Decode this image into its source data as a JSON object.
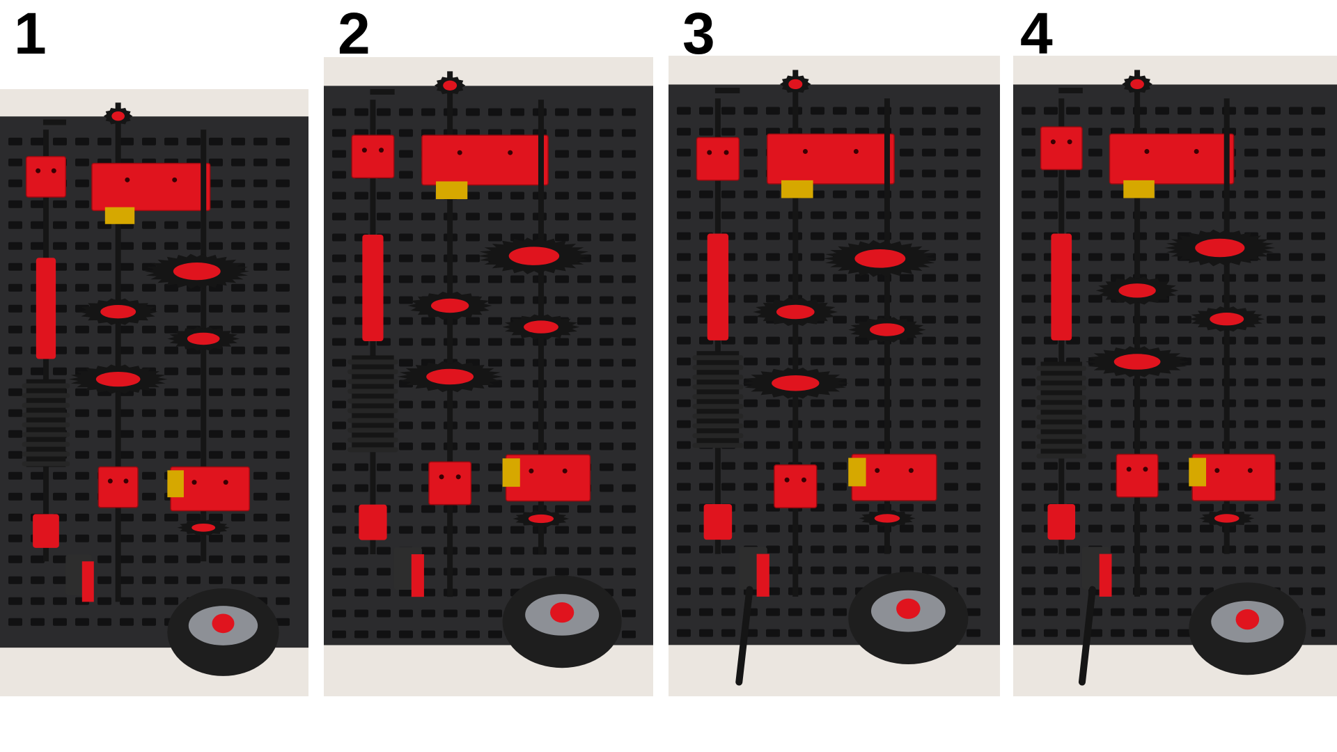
{
  "panels": [
    {
      "label": "1",
      "photo": "pegboard-gear-assembly-photo-1"
    },
    {
      "label": "2",
      "photo": "pegboard-gear-assembly-photo-2"
    },
    {
      "label": "3",
      "photo": "pegboard-gear-assembly-photo-3"
    },
    {
      "label": "4",
      "photo": "pegboard-gear-assembly-photo-4"
    }
  ],
  "colors": {
    "board": "#2b2b2d",
    "wall": "#ebe6e0",
    "part_red": "#e0141e",
    "part_black": "#151515",
    "part_yellow": "#d6a800",
    "tire": "#1e1e1e",
    "hub": "#8d9096"
  }
}
